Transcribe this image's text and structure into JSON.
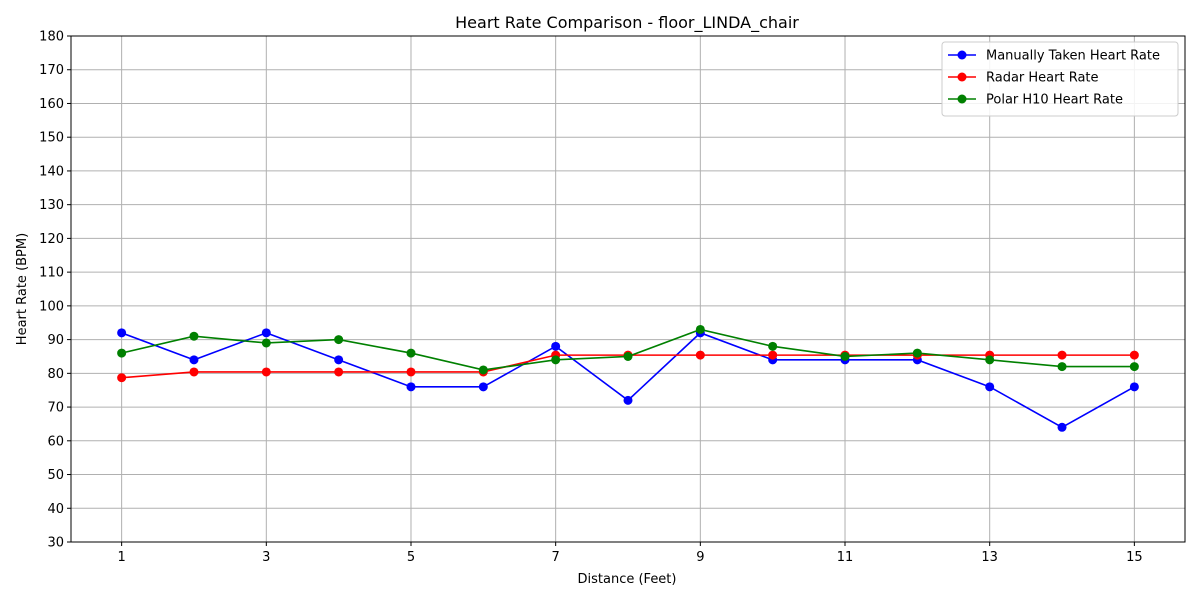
{
  "chart_data": {
    "type": "line",
    "title": "Heart Rate Comparison - floor_LINDA_chair",
    "xlabel": "Distance (Feet)",
    "ylabel": "Heart Rate (BPM)",
    "x": [
      1,
      2,
      3,
      4,
      5,
      6,
      7,
      8,
      9,
      10,
      11,
      12,
      13,
      14,
      15
    ],
    "xticks": [
      1,
      3,
      5,
      7,
      9,
      11,
      13,
      15
    ],
    "yticks": [
      30,
      40,
      50,
      60,
      70,
      80,
      90,
      100,
      110,
      120,
      130,
      140,
      150,
      160,
      170,
      180
    ],
    "xlim": [
      0.3,
      15.7
    ],
    "ylim": [
      30,
      180
    ],
    "grid": true,
    "legend_position": "top-right",
    "series": [
      {
        "name": "Manually Taken Heart Rate",
        "color": "#0000ff",
        "values": [
          92,
          84,
          92,
          84,
          76,
          76,
          88,
          72,
          92,
          84,
          84,
          84,
          76,
          64,
          76
        ]
      },
      {
        "name": "Radar Heart Rate",
        "color": "#ff0000",
        "values": [
          78.7,
          80.4,
          80.4,
          80.4,
          80.4,
          80.4,
          85.4,
          85.4,
          85.4,
          85.4,
          85.4,
          85.4,
          85.4,
          85.4,
          85.4
        ]
      },
      {
        "name": "Polar H10 Heart Rate",
        "color": "#008000",
        "values": [
          86,
          91,
          89,
          90,
          86,
          81,
          84,
          85,
          93,
          88,
          85,
          86,
          84,
          82,
          82
        ]
      }
    ]
  }
}
